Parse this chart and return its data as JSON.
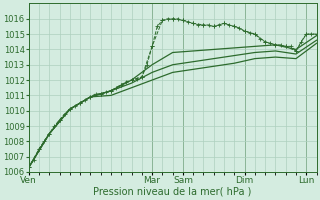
{
  "xlabel": "Pression niveau de la mer( hPa )",
  "ylim": [
    1006,
    1017
  ],
  "xlim": [
    0,
    28
  ],
  "yticks": [
    1006,
    1007,
    1008,
    1009,
    1010,
    1011,
    1012,
    1013,
    1014,
    1015,
    1016
  ],
  "background_color": "#d4ece0",
  "grid_color": "#aed0be",
  "line_color": "#2d6b2d",
  "day_labels": [
    "Ven",
    "",
    "Mar",
    "Sam",
    "",
    "Dim",
    "",
    "Lun"
  ],
  "vline_positions": [
    0,
    12,
    15,
    21,
    27
  ],
  "vline_labels": [
    "Ven",
    "Mar",
    "Sam",
    "Dim",
    "Lun"
  ],
  "series1_x": [
    0,
    0.5,
    1,
    1.5,
    2,
    2.5,
    3,
    3.5,
    4,
    4.5,
    5,
    5.5,
    6,
    6.5,
    7,
    7.5,
    8,
    8.5,
    9,
    9.5,
    10,
    10.5,
    11,
    11.5,
    12,
    12.5,
    13,
    13.5,
    14,
    14.5,
    15,
    15.5,
    16,
    16.5,
    17,
    17.5,
    18,
    18.5,
    19,
    19.5,
    20,
    20.5,
    21,
    21.5,
    22,
    22.5,
    23,
    23.5,
    24,
    24.5,
    25,
    25.5,
    26,
    26.5,
    27,
    27.5,
    28
  ],
  "series1_y": [
    1006.3,
    1006.8,
    1007.5,
    1008.0,
    1008.5,
    1009.0,
    1009.4,
    1009.8,
    1010.1,
    1010.3,
    1010.5,
    1010.7,
    1010.9,
    1011.1,
    1011.1,
    1011.2,
    1011.3,
    1011.5,
    1011.7,
    1011.9,
    1012.0,
    1012.1,
    1012.2,
    1013.0,
    1014.2,
    1015.5,
    1015.9,
    1016.0,
    1016.0,
    1016.0,
    1015.9,
    1015.8,
    1015.7,
    1015.6,
    1015.6,
    1015.6,
    1015.5,
    1015.6,
    1015.7,
    1015.6,
    1015.5,
    1015.4,
    1015.2,
    1015.1,
    1015.0,
    1014.7,
    1014.5,
    1014.4,
    1014.3,
    1014.3,
    1014.2,
    1014.2,
    1013.9,
    1014.5,
    1015.0,
    1015.0,
    1015.0
  ],
  "series2_x": [
    0,
    1,
    2,
    3,
    4,
    5,
    6,
    7,
    8,
    9,
    10,
    11,
    12,
    13,
    14,
    15,
    16,
    17,
    18,
    19,
    20,
    21,
    22,
    23,
    24,
    25,
    26,
    27,
    28
  ],
  "series2_y": [
    1006.3,
    1007.5,
    1008.5,
    1009.4,
    1010.1,
    1010.5,
    1010.9,
    1011.1,
    1011.3,
    1011.7,
    1012.0,
    1012.2,
    1014.2,
    1015.9,
    1016.0,
    1015.9,
    1015.7,
    1015.6,
    1015.5,
    1015.7,
    1015.5,
    1015.2,
    1015.0,
    1014.5,
    1014.3,
    1014.2,
    1013.9,
    1015.0,
    1015.0
  ],
  "series3_x": [
    0,
    2,
    4,
    6,
    8,
    10,
    12,
    14,
    16,
    18,
    20,
    22,
    24,
    26,
    28
  ],
  "series3_y": [
    1006.3,
    1008.5,
    1010.1,
    1010.9,
    1011.3,
    1012.0,
    1013.0,
    1013.8,
    1013.9,
    1014.0,
    1014.1,
    1014.2,
    1014.3,
    1014.0,
    1014.9
  ],
  "series4_x": [
    0,
    2,
    4,
    6,
    8,
    10,
    12,
    14,
    16,
    18,
    20,
    22,
    24,
    26,
    28
  ],
  "series4_y": [
    1006.3,
    1008.5,
    1010.1,
    1010.9,
    1011.3,
    1011.8,
    1012.5,
    1013.0,
    1013.2,
    1013.4,
    1013.6,
    1013.8,
    1013.9,
    1013.7,
    1014.6
  ],
  "series5_x": [
    0,
    2,
    4,
    6,
    8,
    10,
    12,
    14,
    16,
    18,
    20,
    22,
    24,
    26,
    28
  ],
  "series5_y": [
    1006.3,
    1008.5,
    1010.1,
    1010.9,
    1011.0,
    1011.5,
    1012.0,
    1012.5,
    1012.7,
    1012.9,
    1013.1,
    1013.4,
    1013.5,
    1013.4,
    1014.4
  ]
}
